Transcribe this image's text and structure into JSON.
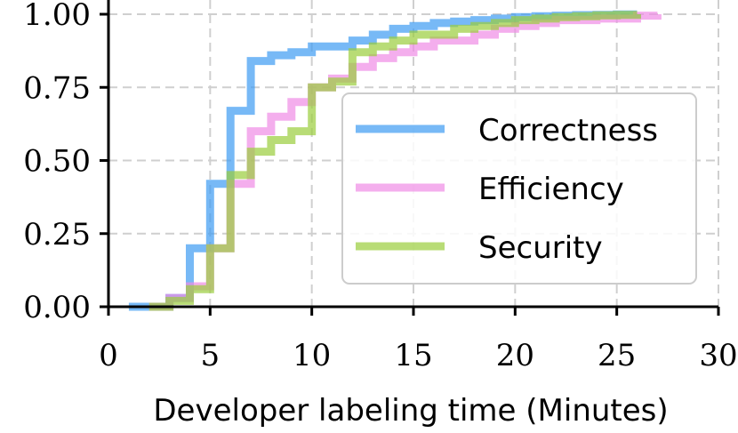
{
  "chart_data": {
    "type": "line",
    "step": true,
    "title": "",
    "xlabel": "Developer labeling time (Minutes)",
    "ylabel": "",
    "xlim": [
      0,
      30
    ],
    "ylim": [
      0,
      1
    ],
    "xticks": [
      0,
      5,
      10,
      15,
      20,
      25,
      30
    ],
    "yticks": [
      0.0,
      0.25,
      0.5,
      0.75,
      1.0
    ],
    "xtick_labels": [
      "0",
      "5",
      "10",
      "15",
      "20",
      "25",
      "30"
    ],
    "ytick_labels": [
      "0.00",
      "0.25",
      "0.50",
      "0.75",
      "1.00"
    ],
    "grid": true,
    "legend_position": "center-right",
    "series": [
      {
        "name": "Correctness",
        "color": "#3d9bf2",
        "x": [
          1,
          3,
          4,
          5,
          6,
          7,
          8,
          9,
          10,
          12,
          13,
          14,
          15,
          16,
          17,
          18,
          19,
          20,
          21,
          22,
          23,
          24,
          25,
          26
        ],
        "y": [
          0.0,
          0.03,
          0.2,
          0.42,
          0.67,
          0.84,
          0.86,
          0.87,
          0.89,
          0.91,
          0.93,
          0.95,
          0.96,
          0.97,
          0.975,
          0.98,
          0.985,
          0.99,
          0.993,
          0.995,
          0.997,
          0.998,
          0.999,
          1.0
        ]
      },
      {
        "name": "Efficiency",
        "color": "#f08ce6",
        "x": [
          2,
          3,
          4,
          5,
          6,
          7,
          8,
          9,
          10,
          11,
          12,
          13,
          14,
          15,
          16,
          18,
          19,
          20,
          21,
          22,
          24,
          26,
          27
        ],
        "y": [
          0.0,
          0.03,
          0.07,
          0.2,
          0.42,
          0.6,
          0.65,
          0.7,
          0.75,
          0.78,
          0.82,
          0.85,
          0.87,
          0.89,
          0.91,
          0.93,
          0.95,
          0.96,
          0.97,
          0.98,
          0.985,
          0.995,
          1.0
        ]
      },
      {
        "name": "Security",
        "color": "#9acd3c",
        "x": [
          2,
          3,
          4,
          5,
          6,
          7,
          8,
          9,
          10,
          11,
          12,
          13,
          14,
          15,
          17,
          18,
          19,
          20,
          21,
          22,
          23,
          24,
          25,
          26
        ],
        "y": [
          0.0,
          0.02,
          0.06,
          0.2,
          0.45,
          0.53,
          0.57,
          0.6,
          0.75,
          0.77,
          0.87,
          0.89,
          0.91,
          0.93,
          0.95,
          0.96,
          0.97,
          0.98,
          0.985,
          0.99,
          0.993,
          0.996,
          0.998,
          1.0
        ]
      }
    ]
  }
}
